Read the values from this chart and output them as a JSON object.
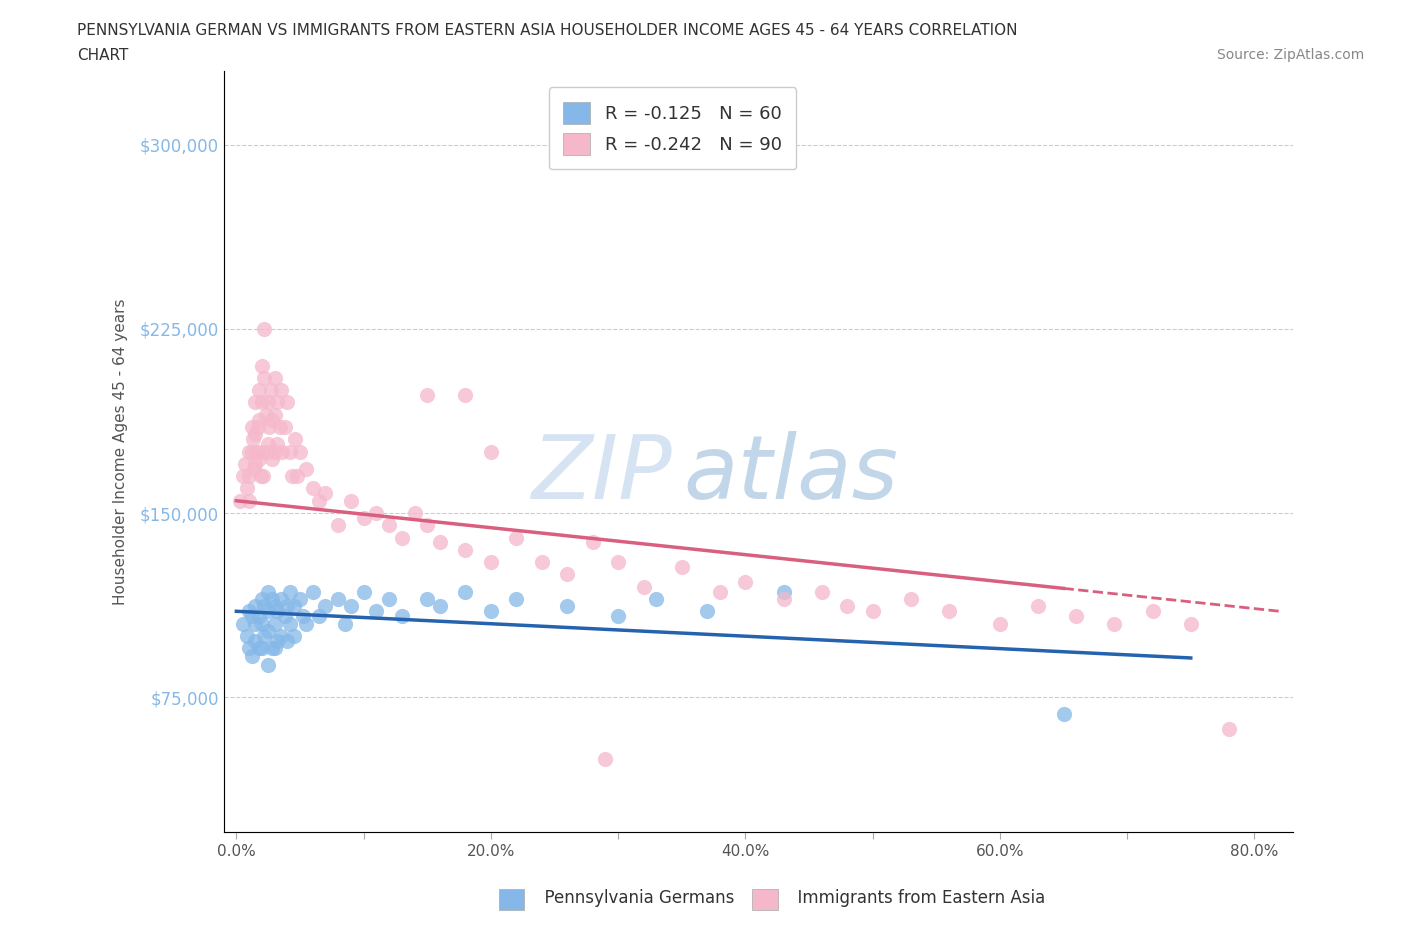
{
  "title_line1": "PENNSYLVANIA GERMAN VS IMMIGRANTS FROM EASTERN ASIA HOUSEHOLDER INCOME AGES 45 - 64 YEARS CORRELATION",
  "title_line2": "CHART",
  "source": "Source: ZipAtlas.com",
  "ylabel": "Householder Income Ages 45 - 64 years",
  "ytick_labels": [
    "$75,000",
    "$150,000",
    "$225,000",
    "$300,000"
  ],
  "ytick_values": [
    75000,
    150000,
    225000,
    300000
  ],
  "ylim": [
    20000,
    330000
  ],
  "xlim": [
    -0.01,
    0.83
  ],
  "xtick_values": [
    0.0,
    0.1,
    0.2,
    0.3,
    0.4,
    0.5,
    0.6,
    0.7,
    0.8
  ],
  "xtick_labels": [
    "0.0%",
    "",
    "20.0%",
    "",
    "40.0%",
    "",
    "60.0%",
    "",
    "80.0%"
  ],
  "blue_color": "#85b8e8",
  "pink_color": "#f5b8cb",
  "blue_line_color": "#2563ae",
  "pink_line_color": "#d95f7f",
  "legend_r1": "R = -0.125",
  "legend_n1": "N = 60",
  "legend_r2": "R = -0.242",
  "legend_n2": "N = 90",
  "watermark_zip": "ZIP",
  "watermark_atlas": "atlas",
  "blue_scatter_x": [
    0.005,
    0.008,
    0.01,
    0.01,
    0.012,
    0.012,
    0.015,
    0.015,
    0.015,
    0.018,
    0.018,
    0.02,
    0.02,
    0.02,
    0.022,
    0.022,
    0.025,
    0.025,
    0.025,
    0.025,
    0.028,
    0.028,
    0.03,
    0.03,
    0.03,
    0.032,
    0.032,
    0.035,
    0.035,
    0.038,
    0.04,
    0.04,
    0.042,
    0.042,
    0.045,
    0.045,
    0.05,
    0.052,
    0.055,
    0.06,
    0.065,
    0.07,
    0.08,
    0.085,
    0.09,
    0.1,
    0.11,
    0.12,
    0.13,
    0.15,
    0.16,
    0.18,
    0.2,
    0.22,
    0.26,
    0.3,
    0.33,
    0.37,
    0.43,
    0.65
  ],
  "blue_scatter_y": [
    105000,
    100000,
    110000,
    95000,
    108000,
    92000,
    112000,
    105000,
    98000,
    108000,
    95000,
    115000,
    105000,
    95000,
    112000,
    100000,
    118000,
    110000,
    102000,
    88000,
    115000,
    95000,
    112000,
    105000,
    95000,
    110000,
    98000,
    115000,
    100000,
    108000,
    112000,
    98000,
    118000,
    105000,
    112000,
    100000,
    115000,
    108000,
    105000,
    118000,
    108000,
    112000,
    115000,
    105000,
    112000,
    118000,
    110000,
    115000,
    108000,
    115000,
    112000,
    118000,
    110000,
    115000,
    112000,
    108000,
    115000,
    110000,
    118000,
    68000
  ],
  "pink_scatter_x": [
    0.003,
    0.005,
    0.007,
    0.008,
    0.01,
    0.01,
    0.01,
    0.012,
    0.012,
    0.013,
    0.014,
    0.015,
    0.015,
    0.015,
    0.016,
    0.017,
    0.018,
    0.018,
    0.018,
    0.019,
    0.02,
    0.02,
    0.02,
    0.021,
    0.022,
    0.022,
    0.023,
    0.024,
    0.025,
    0.025,
    0.026,
    0.027,
    0.028,
    0.028,
    0.03,
    0.03,
    0.03,
    0.032,
    0.032,
    0.034,
    0.035,
    0.036,
    0.038,
    0.04,
    0.042,
    0.044,
    0.046,
    0.048,
    0.05,
    0.055,
    0.06,
    0.065,
    0.07,
    0.08,
    0.09,
    0.1,
    0.11,
    0.12,
    0.13,
    0.14,
    0.15,
    0.16,
    0.18,
    0.2,
    0.22,
    0.24,
    0.26,
    0.28,
    0.3,
    0.32,
    0.35,
    0.38,
    0.4,
    0.43,
    0.46,
    0.48,
    0.5,
    0.53,
    0.56,
    0.6,
    0.63,
    0.66,
    0.69,
    0.72,
    0.75,
    0.78,
    0.29,
    0.15,
    0.18,
    0.2
  ],
  "pink_scatter_y": [
    155000,
    165000,
    170000,
    160000,
    175000,
    165000,
    155000,
    185000,
    175000,
    180000,
    168000,
    195000,
    182000,
    170000,
    175000,
    185000,
    200000,
    188000,
    172000,
    165000,
    210000,
    195000,
    175000,
    165000,
    225000,
    205000,
    190000,
    175000,
    195000,
    178000,
    185000,
    200000,
    188000,
    172000,
    205000,
    190000,
    175000,
    195000,
    178000,
    185000,
    200000,
    175000,
    185000,
    195000,
    175000,
    165000,
    180000,
    165000,
    175000,
    168000,
    160000,
    155000,
    158000,
    145000,
    155000,
    148000,
    150000,
    145000,
    140000,
    150000,
    145000,
    138000,
    135000,
    130000,
    140000,
    130000,
    125000,
    138000,
    130000,
    120000,
    128000,
    118000,
    122000,
    115000,
    118000,
    112000,
    110000,
    115000,
    110000,
    105000,
    112000,
    108000,
    105000,
    110000,
    105000,
    62000,
    50000,
    198000,
    198000,
    175000
  ]
}
